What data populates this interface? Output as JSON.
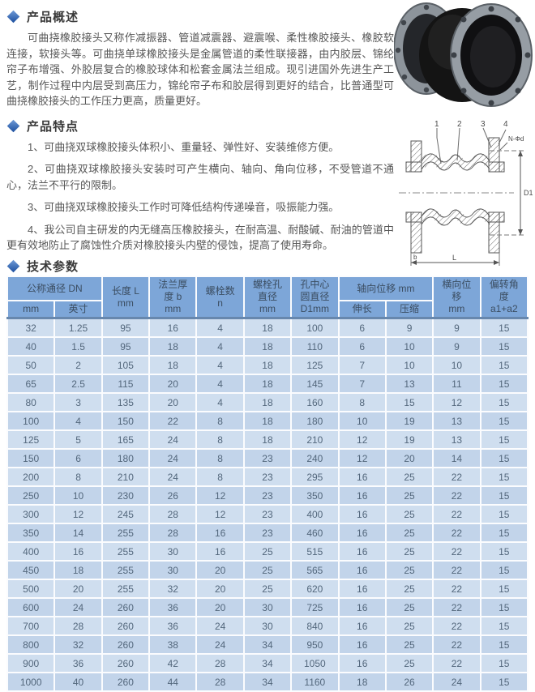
{
  "overview": {
    "title": "产品概述",
    "body": "可曲挠橡胶接头又称作减振器、管道减震器、避震喉、柔性橡胶接头、橡胶软连接，软接头等。可曲挠单球橡胶接头是金属管道的柔性联接器，由内胶层、锦纶帘子布增强、外胶层复合的橡胶球体和松套金属法兰组成。现引进国外先进生产工艺，制作过程中内层受到高压力，锦纶帘子布和胶层得到更好的结合，比普通型可曲挠橡胶接头的工作压力更高，质量更好。"
  },
  "features": {
    "title": "产品特点",
    "items": [
      "1、可曲挠双球橡胶接头体积小、重量轻、弹性好、安装维修方便。",
      "2、可曲挠双球橡胶接头安装时可产生横向、轴向、角向位移，不受管道不通心，法兰不平行的限制。",
      "3、可曲挠双球橡胶接头工作时可降低结构传递噪音，吸振能力强。",
      "4、我公司自主研发的内无缝高压橡胶接头，在耐高温、耐酸碱、耐油的管道中更有效地防止了腐蚀性介质对橡胶接头内壁的侵蚀，提高了使用寿命。"
    ]
  },
  "specs": {
    "title": "技术参数"
  },
  "drawing": {
    "part_labels": [
      "1",
      "2",
      "3",
      "4"
    ],
    "bolt_hole_label": "N-Φd",
    "dim_inner_diameter": "D1",
    "dim_length": "L",
    "dim_flange_thickness": "b"
  },
  "table": {
    "header": {
      "dn": "公称通径 DN",
      "mm": "mm",
      "inch": "英寸",
      "length": "长度 L\nmm",
      "flange": "法兰厚\n度 b\nmm",
      "bolt_count": "螺栓数\nn",
      "bolt_dia": "螺栓孔\n直径\nmm",
      "circle_dia": "孔中心\n圆直径\nD1mm",
      "axial": "轴向位移 mm",
      "elongation": "伸长",
      "compression": "压缩",
      "lateral": "横向位\n移\nmm",
      "angle": "偏转角\n度\na1+a2"
    },
    "rows": [
      [
        32,
        1.25,
        95,
        16,
        4,
        18,
        100,
        6,
        9,
        9,
        15
      ],
      [
        40,
        1.5,
        95,
        18,
        4,
        18,
        110,
        6,
        10,
        9,
        15
      ],
      [
        50,
        2,
        105,
        18,
        4,
        18,
        125,
        7,
        10,
        10,
        15
      ],
      [
        65,
        2.5,
        115,
        20,
        4,
        18,
        145,
        7,
        13,
        11,
        15
      ],
      [
        80,
        3,
        135,
        20,
        4,
        18,
        160,
        8,
        15,
        12,
        15
      ],
      [
        100,
        4,
        150,
        22,
        8,
        18,
        180,
        10,
        19,
        13,
        15
      ],
      [
        125,
        5,
        165,
        24,
        8,
        18,
        210,
        12,
        19,
        13,
        15
      ],
      [
        150,
        6,
        180,
        24,
        8,
        23,
        240,
        12,
        20,
        14,
        15
      ],
      [
        200,
        8,
        210,
        24,
        8,
        23,
        295,
        16,
        25,
        22,
        15
      ],
      [
        250,
        10,
        230,
        26,
        12,
        23,
        350,
        16,
        25,
        22,
        15
      ],
      [
        300,
        12,
        245,
        28,
        12,
        23,
        400,
        16,
        25,
        22,
        15
      ],
      [
        350,
        14,
        255,
        28,
        16,
        23,
        460,
        16,
        25,
        22,
        15
      ],
      [
        400,
        16,
        255,
        30,
        16,
        25,
        515,
        16,
        25,
        22,
        15
      ],
      [
        450,
        18,
        255,
        30,
        20,
        25,
        565,
        16,
        25,
        22,
        15
      ],
      [
        500,
        20,
        255,
        32,
        20,
        25,
        620,
        16,
        25,
        22,
        15
      ],
      [
        600,
        24,
        260,
        36,
        20,
        30,
        725,
        16,
        25,
        22,
        15
      ],
      [
        700,
        28,
        260,
        36,
        24,
        30,
        840,
        16,
        25,
        22,
        15
      ],
      [
        800,
        32,
        260,
        38,
        24,
        34,
        950,
        16,
        25,
        22,
        15
      ],
      [
        900,
        36,
        260,
        42,
        28,
        34,
        1050,
        16,
        25,
        22,
        15
      ],
      [
        1000,
        40,
        260,
        44,
        28,
        34,
        1160,
        18,
        26,
        24,
        15
      ]
    ]
  },
  "colors": {
    "accent_blue": "#2e62ae",
    "table_header_bg": "#7da6d8",
    "row_light": "#cfdeef",
    "row_dark": "#c2d4ea"
  }
}
